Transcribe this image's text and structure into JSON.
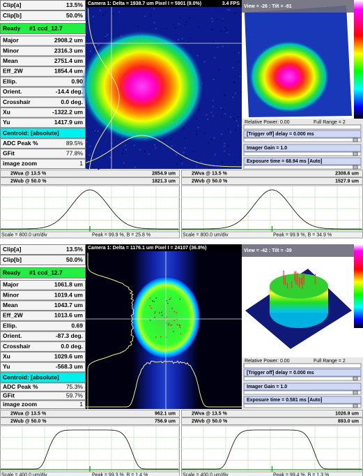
{
  "panels": [
    {
      "clip": [
        {
          "label": "Clip[a]",
          "value": "13.5%"
        },
        {
          "label": "Clip[b]",
          "value": "50.0%"
        }
      ],
      "status": {
        "state": "Ready",
        "source": "#1 ccd_12.7"
      },
      "measurements": [
        {
          "label": "Major",
          "value": "2908.2 um"
        },
        {
          "label": "Minor",
          "value": "2316.3 um"
        },
        {
          "label": "Mean",
          "value": "2751.4 um"
        },
        {
          "label": "Eff_2W",
          "value": "1854.4 um"
        },
        {
          "label": "Ellip.",
          "value": "0.90"
        },
        {
          "label": "Orient.",
          "value": "-14.4 deg."
        },
        {
          "label": "Crosshair",
          "value": "0.0 deg."
        },
        {
          "label": "Xu",
          "value": "-1322.2 um"
        },
        {
          "label": "Yu",
          "value": "1417.9 um"
        }
      ],
      "centroid": "Centroid: [absolute]",
      "fit": [
        {
          "label": "ADC Peak %",
          "value": "89.5%"
        },
        {
          "label": "GFit",
          "value": "77.8%"
        },
        {
          "label": "image zoom",
          "value": "1"
        }
      ],
      "camera_title": "Camera 1: Delta = 1938.7 um Pixel I = 5901 (9.0%)",
      "fps": "3.4 FPS",
      "view_title": "View = -26 : Tilt = -81",
      "relative_power": "Relative Power: 0.00",
      "full_range": "Full Range = 2",
      "trigger": "[Trigger off] delay = 0.000 ms",
      "gain": "Imager Gain = 1.0",
      "exposure": "Exposure time = 68.94 ms [Auto]",
      "profiles": [
        {
          "rows": [
            {
              "label": "2Wua @ 13.5 %",
              "value": "2854.9 um"
            },
            {
              "label": "2Wub @ 50.0 %",
              "value": "1821.3 um"
            }
          ],
          "scale": "Scale = 800.0 um/div",
          "peak": "Peak = 99.9 %, B = 25.8 %"
        },
        {
          "rows": [
            {
              "label": "2Wva @ 13.5 %",
              "value": "2308.6 um"
            },
            {
              "label": "2Wvb @ 50.0 %",
              "value": "1527.9 um"
            }
          ],
          "scale": "Scale = 800.0 um/div",
          "peak": "Peak = 99.9 %, B = 34.9 %"
        }
      ]
    },
    {
      "clip": [
        {
          "label": "Clip[a]",
          "value": "13.5%"
        },
        {
          "label": "Clip[b]",
          "value": "50.0%"
        }
      ],
      "status": {
        "state": "Ready",
        "source": "#1 ccd_12.7"
      },
      "measurements": [
        {
          "label": "Major",
          "value": "1061.8 um"
        },
        {
          "label": "Minor",
          "value": "1019.4 um"
        },
        {
          "label": "Mean",
          "value": "1043.7 um"
        },
        {
          "label": "Eff_2W",
          "value": "1013.6 um"
        },
        {
          "label": "Ellip.",
          "value": "0.69"
        },
        {
          "label": "Orient.",
          "value": "-87.3 deg."
        },
        {
          "label": "Crosshair",
          "value": "0.0 deg."
        },
        {
          "label": "Xu",
          "value": "1029.6 um"
        },
        {
          "label": "Yu",
          "value": "-568.3 um"
        }
      ],
      "centroid": "Centroid: [absolute]",
      "fit": [
        {
          "label": "ADC Peak %",
          "value": "75.3%"
        },
        {
          "label": "GFit",
          "value": "59.7%"
        },
        {
          "label": "image zoom",
          "value": "1"
        }
      ],
      "camera_title": "Camera 1: Delta = 1176.1 um Pixel I = 24107 (36.8%)",
      "view_title": "View = -42 : Tilt = -39",
      "relative_power": "Relative Power: 0.00",
      "full_range": "Full Range = 2",
      "trigger": "[Trigger off] delay = 0.000 ms",
      "gain": "Imager Gain = 1.0",
      "exposure": "Exposure time = 0.581 ms [Auto]",
      "profiles": [
        {
          "rows": [
            {
              "label": "2Wua @ 13.5 %",
              "value": "962.1 um"
            },
            {
              "label": "2Wub @ 50.0 %",
              "value": "756.9 um"
            }
          ],
          "scale": "Scale = 400.0 um/div",
          "peak": "Peak = 99.3 %, B = 1.4 %"
        },
        {
          "rows": [
            {
              "label": "2Wva @ 13.5 %",
              "value": "1026.9 um"
            },
            {
              "label": "2Wvb @ 50.0 %",
              "value": "893.0 um"
            }
          ],
          "scale": "Scale = 400.0 um/div",
          "peak": "Peak = 99.4 %, B = 1.3 %"
        }
      ]
    }
  ]
}
